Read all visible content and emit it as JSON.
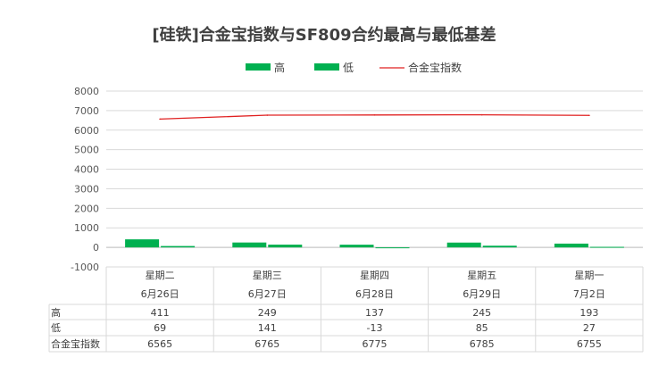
{
  "chart_data": {
    "type": "bar",
    "title": "[硅铁]合金宝指数与SF809合约最高与最低基差",
    "categories": [
      {
        "weekday": "星期二",
        "date": "6月26日"
      },
      {
        "weekday": "星期三",
        "date": "6月27日"
      },
      {
        "weekday": "星期四",
        "date": "6月28日"
      },
      {
        "weekday": "星期五",
        "date": "6月29日"
      },
      {
        "weekday": "星期一",
        "date": "7月2日"
      }
    ],
    "series": [
      {
        "name": "高",
        "kind": "bar",
        "color": "#00b050",
        "values": [
          411,
          249,
          137,
          245,
          193
        ]
      },
      {
        "name": "低",
        "kind": "bar",
        "color": "#00b050",
        "values": [
          69,
          141,
          -13,
          85,
          27
        ]
      },
      {
        "name": "合金宝指数",
        "kind": "line",
        "color": "#e02020",
        "values": [
          6565,
          6765,
          6775,
          6785,
          6755
        ]
      }
    ],
    "ylim": [
      -1000,
      8000
    ],
    "yticks": [
      -1000,
      0,
      1000,
      2000,
      3000,
      4000,
      5000,
      6000,
      7000,
      8000
    ],
    "grid": true,
    "legend_position": "top",
    "data_table": true
  }
}
